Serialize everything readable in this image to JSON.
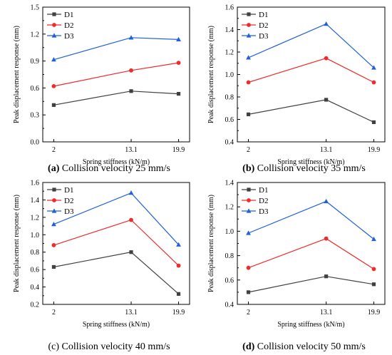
{
  "chart_data": [
    {
      "type": "line",
      "caption_letter": "(a)",
      "caption_text": " Collision velocity 25 mm/s",
      "caption_letter_bold": true,
      "xlabel": "Spring stiffness (kN/m)",
      "ylabel": "Peak displacement response (mm)",
      "categories": [
        "2",
        "13.1",
        "19.9"
      ],
      "x": [
        2,
        13.1,
        19.9
      ],
      "ylim": [
        0.0,
        1.5
      ],
      "yticks": [
        "0.0",
        "0.3",
        "0.6",
        "0.9",
        "1.2",
        "1.5"
      ],
      "legend_position": "top-left",
      "series": [
        {
          "name": "D1",
          "color": "#404040",
          "marker": "square",
          "values": [
            0.41,
            0.565,
            0.535
          ]
        },
        {
          "name": "D2",
          "color": "#ef2b2b",
          "marker": "circle",
          "values": [
            0.62,
            0.795,
            0.88
          ]
        },
        {
          "name": "D3",
          "color": "#2060d8",
          "marker": "triangle",
          "values": [
            0.915,
            1.16,
            1.14
          ]
        }
      ]
    },
    {
      "type": "line",
      "caption_letter": "(b)",
      "caption_text": " Collision velocity 35 mm/s",
      "caption_letter_bold": true,
      "xlabel": "Spring stiffness (kN/m)",
      "ylabel": "Peak displacement response (mm)",
      "categories": [
        "2",
        "13.1",
        "19.9"
      ],
      "x": [
        2,
        13.1,
        19.9
      ],
      "ylim": [
        0.4,
        1.6
      ],
      "yticks": [
        "0.4",
        "0.6",
        "0.8",
        "1.0",
        "1.2",
        "1.4",
        "1.6"
      ],
      "legend_position": "top-left",
      "series": [
        {
          "name": "D1",
          "color": "#404040",
          "marker": "square",
          "values": [
            0.645,
            0.775,
            0.575
          ]
        },
        {
          "name": "D2",
          "color": "#ef2b2b",
          "marker": "circle",
          "values": [
            0.93,
            1.145,
            0.93
          ]
        },
        {
          "name": "D3",
          "color": "#2060d8",
          "marker": "triangle",
          "values": [
            1.15,
            1.45,
            1.06
          ]
        }
      ]
    },
    {
      "type": "line",
      "caption_letter": "(c)",
      "caption_text": " Collision velocity 40 mm/s",
      "caption_letter_bold": false,
      "xlabel": "Spring stiffness (kN/m)",
      "ylabel": "Peak displacement response (mm)",
      "categories": [
        "2",
        "13.1",
        "19.9"
      ],
      "x": [
        2,
        13.1,
        19.9
      ],
      "ylim": [
        0.2,
        1.6
      ],
      "yticks": [
        "0.2",
        "0.4",
        "0.6",
        "0.8",
        "1.0",
        "1.2",
        "1.4",
        "1.6"
      ],
      "legend_position": "top-left",
      "series": [
        {
          "name": "D1",
          "color": "#404040",
          "marker": "square",
          "values": [
            0.63,
            0.8,
            0.32
          ]
        },
        {
          "name": "D2",
          "color": "#ef2b2b",
          "marker": "circle",
          "values": [
            0.88,
            1.17,
            0.645
          ]
        },
        {
          "name": "D3",
          "color": "#2060d8",
          "marker": "triangle",
          "values": [
            1.12,
            1.48,
            0.885
          ]
        }
      ]
    },
    {
      "type": "line",
      "caption_letter": "(d)",
      "caption_text": " Collision velocity 50 mm/s",
      "caption_letter_bold": true,
      "xlabel": "Spring stiffness (kN/m)",
      "ylabel": "Peak displacement response (mm)",
      "categories": [
        "2",
        "13.1",
        "19.9"
      ],
      "x": [
        2,
        13.1,
        19.9
      ],
      "ylim": [
        0.4,
        1.4
      ],
      "yticks": [
        "0.4",
        "0.6",
        "0.8",
        "1.0",
        "1.2",
        "1.4"
      ],
      "legend_position": "top-left",
      "series": [
        {
          "name": "D1",
          "color": "#404040",
          "marker": "square",
          "values": [
            0.5,
            0.63,
            0.565
          ]
        },
        {
          "name": "D2",
          "color": "#ef2b2b",
          "marker": "circle",
          "values": [
            0.7,
            0.94,
            0.69
          ]
        },
        {
          "name": "D3",
          "color": "#2060d8",
          "marker": "triangle",
          "values": [
            0.985,
            1.245,
            0.935
          ]
        }
      ]
    }
  ]
}
